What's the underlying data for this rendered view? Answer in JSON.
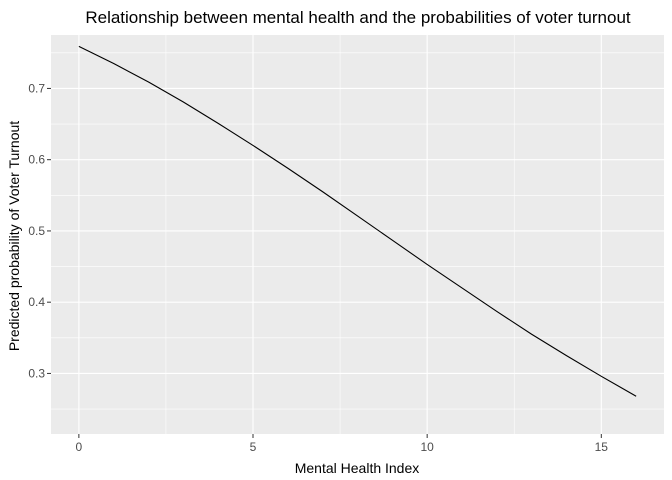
{
  "chart_data": {
    "type": "line",
    "title": "Relationship between mental health and the probabilities of voter turnout",
    "xlabel": "Mental Health Index",
    "ylabel": "Predicted probability of Voter Turnout",
    "xlim": [
      -0.8,
      16.8
    ],
    "ylim": [
      0.215,
      0.775
    ],
    "x_ticks": [
      0,
      5,
      10,
      15
    ],
    "x_tick_labels": [
      "0",
      "5",
      "10",
      "15"
    ],
    "y_ticks": [
      0.3,
      0.4,
      0.5,
      0.6,
      0.7
    ],
    "y_tick_labels": [
      "0.3",
      "0.4",
      "0.5",
      "0.6",
      "0.7"
    ],
    "grid": true,
    "panel_background": "#EBEBEB",
    "grid_color": "#FFFFFF",
    "series": [
      {
        "color": "#000000",
        "x": [
          0,
          1,
          2,
          3,
          4,
          5,
          6,
          7,
          8,
          9,
          10,
          11,
          12,
          13,
          14,
          15,
          16
        ],
        "y": [
          0.759,
          0.735,
          0.709,
          0.681,
          0.651,
          0.62,
          0.588,
          0.555,
          0.521,
          0.487,
          0.453,
          0.42,
          0.387,
          0.355,
          0.325,
          0.296,
          0.268
        ]
      }
    ]
  }
}
